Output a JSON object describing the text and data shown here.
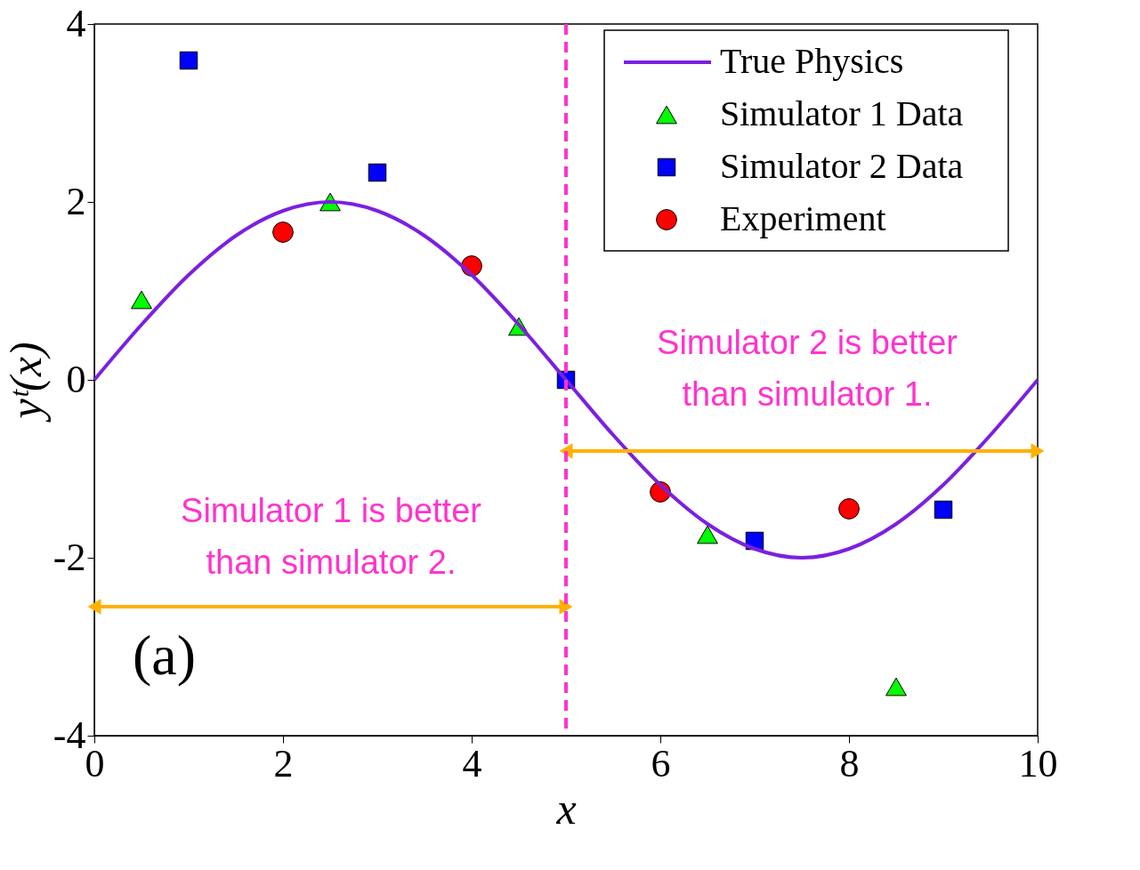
{
  "chart_data": {
    "type": "scatter",
    "xlabel": "x",
    "ylabel": "yᵗ(x)",
    "xlim": [
      0,
      10
    ],
    "ylim": [
      -4,
      4
    ],
    "xticks": [
      0,
      2,
      4,
      6,
      8,
      10
    ],
    "yticks": [
      -4,
      -2,
      0,
      2,
      4
    ],
    "grid": false,
    "legend": "top right",
    "series": [
      {
        "name": "True Physics",
        "type": "line",
        "color": "#7b20e0",
        "marker": "none",
        "line_style": "solid",
        "x": [
          0,
          0.5,
          1,
          1.5,
          2,
          2.5,
          3,
          3.5,
          4,
          4.5,
          5,
          5.5,
          6,
          6.5,
          7,
          7.5,
          8,
          8.5,
          9,
          9.5,
          10
        ],
        "values": [
          0,
          0.62,
          1.18,
          1.62,
          1.9,
          2.0,
          1.9,
          1.62,
          1.18,
          0.62,
          0,
          -0.62,
          -1.18,
          -1.62,
          -1.9,
          -2.0,
          -1.9,
          -1.62,
          -1.18,
          -0.62,
          0
        ]
      },
      {
        "name": "Simulator 1 Data",
        "type": "scatter",
        "color": "#00ff00",
        "marker": "triangle",
        "x": [
          0.5,
          2.5,
          4.5,
          6.5,
          8.5
        ],
        "values": [
          0.9,
          2.0,
          0.6,
          -1.74,
          -3.45
        ]
      },
      {
        "name": "Simulator 2 Data",
        "type": "scatter",
        "color": "#0000ff",
        "marker": "square",
        "x": [
          1,
          3,
          5,
          7,
          9
        ],
        "values": [
          3.59,
          2.33,
          0,
          -1.81,
          -1.46
        ]
      },
      {
        "name": "Experiment",
        "type": "scatter",
        "color": "#ff0000",
        "marker": "circle",
        "x": [
          2,
          4,
          6,
          8
        ],
        "values": [
          1.66,
          1.28,
          -1.26,
          -1.45
        ]
      },
      {
        "type": "line",
        "color": "#ffb000",
        "marker": "triangle",
        "line_style": "solid",
        "x": [
          0,
          5
        ],
        "values": [
          -2.55,
          -2.55
        ]
      },
      {
        "type": "line",
        "color": "#ffb000",
        "marker": "triangle",
        "line_style": "solid",
        "x": [
          5,
          10
        ],
        "values": [
          -0.8,
          -0.8
        ]
      }
    ],
    "ref_lines": [
      {
        "axis": "x",
        "value": 5,
        "color": "#ff33cc",
        "line_style": "dashed"
      }
    ],
    "annotations": [
      "Simulator  1  is  better\nthan simulator 2.",
      "Simulator  2  is  better\nthan simulator 1.",
      "(a)"
    ]
  }
}
